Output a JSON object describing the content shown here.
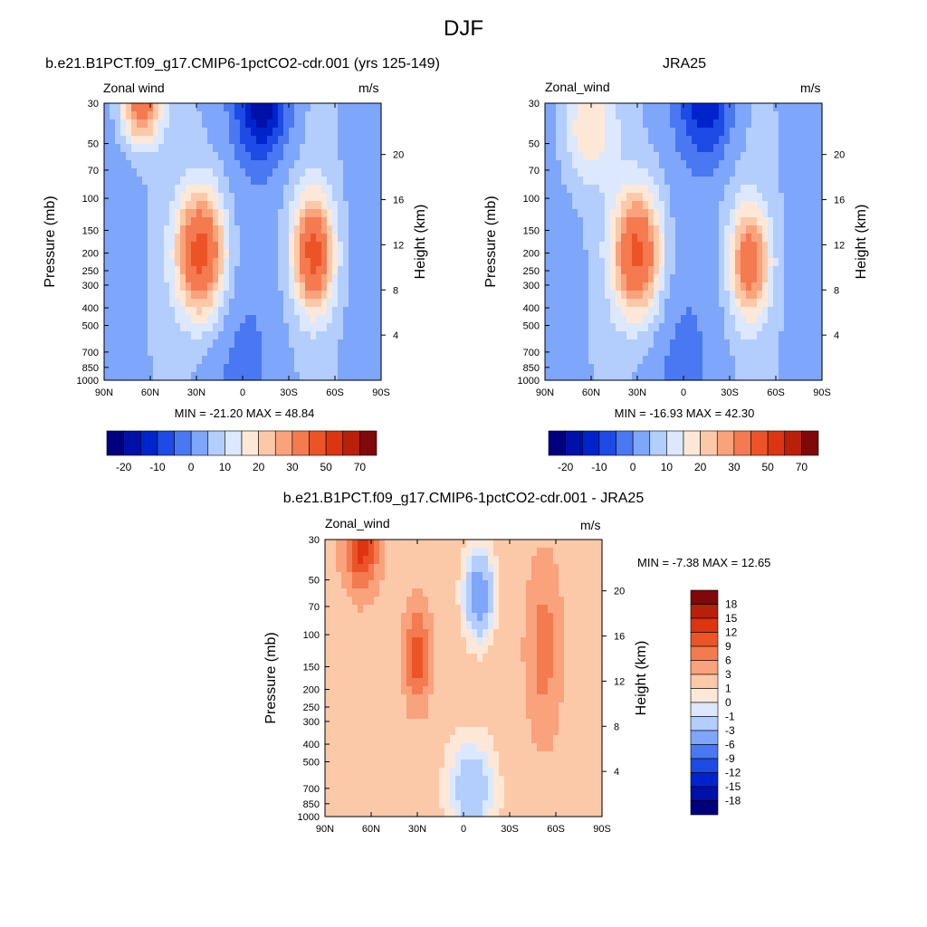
{
  "figure": {
    "title": "DJF"
  },
  "colors": {
    "ramp": [
      "#00007f",
      "#0010a8",
      "#0024cc",
      "#1e4ae6",
      "#4a78f2",
      "#7ea6fa",
      "#b3cdfc",
      "#dbe8fd",
      "#fde8d8",
      "#fcc9a8",
      "#f9a27c",
      "#f47a50",
      "#ec5428",
      "#dd3512",
      "#b8200a",
      "#7f0808"
    ]
  },
  "panels": [
    {
      "id": "model",
      "title": "b.e21.B1PCT.f09_g17.CMIP6-1pctCO2-cdr.001 (yrs 125-149)",
      "left_label": "Zonal wind",
      "right_label": "m/s",
      "ylabel": "Pressure (mb)",
      "y2label": "Height (km)",
      "stats": "MIN = -21.20  MAX =  48.84",
      "colorbar_ticks": [
        "-20",
        "-10",
        "0",
        "10",
        "20",
        "30",
        "50",
        "70"
      ]
    },
    {
      "id": "obs",
      "title": "JRA25",
      "left_label": "Zonal_wind",
      "right_label": "m/s",
      "ylabel": "Pressure (mb)",
      "y2label": "Height (km)",
      "stats": "MIN = -16.93  MAX =  42.30",
      "colorbar_ticks": [
        "-20",
        "-10",
        "0",
        "10",
        "20",
        "30",
        "50",
        "70"
      ]
    },
    {
      "id": "diff",
      "title": "b.e21.B1PCT.f09_g17.CMIP6-1pctCO2-cdr.001 - JRA25",
      "left_label": "Zonal_wind",
      "right_label": "m/s",
      "ylabel": "Pressure (mb)",
      "y2label": "Height (km)",
      "stats": "MIN =  -7.38  MAX =  12.65",
      "colorbar_ticks": [
        "18",
        "15",
        "12",
        "9",
        "6",
        "3",
        "1",
        "0",
        "-1",
        "-3",
        "-6",
        "-9",
        "-12",
        "-15",
        "-18"
      ]
    }
  ],
  "chart_data": [
    {
      "type": "heatmap",
      "title": "b.e21.B1PCT.f09_g17.CMIP6-1pctCO2-cdr.001 (yrs 125-149)",
      "ylabel": "Pressure (mb)",
      "y2label": "Height (km)",
      "x_ticks": [
        "90N",
        "60N",
        "30N",
        "0",
        "30S",
        "60S",
        "90S"
      ],
      "y_ticks": [
        "30",
        "50",
        "70",
        "100",
        "150",
        "200",
        "250",
        "300",
        "400",
        "500",
        "700",
        "850",
        "1000"
      ],
      "y2_ticks": [
        "20",
        "16",
        "12",
        "8",
        "4"
      ],
      "min": -21.2,
      "max": 48.84,
      "levels": [
        -20,
        -15,
        -10,
        -5,
        0,
        5,
        10,
        15,
        20,
        25,
        30,
        40,
        50,
        60,
        70
      ],
      "features": [
        {
          "kind": "jet",
          "lat": 27,
          "p": 200,
          "peak": 40,
          "wx": 11,
          "wp": 0.55
        },
        {
          "kind": "jet",
          "lat": -46,
          "p": 200,
          "peak": 38,
          "wx": 9,
          "wp": 0.5
        },
        {
          "kind": "jet",
          "lat": 66,
          "p": 30,
          "peak": 32,
          "wx": 9,
          "wp": 0.35
        },
        {
          "kind": "easterly",
          "lat": -13,
          "p": 30,
          "peak": -21,
          "wx": 12,
          "wp": 0.5
        }
      ]
    },
    {
      "type": "heatmap",
      "title": "JRA25",
      "ylabel": "Pressure (mb)",
      "y2label": "Height (km)",
      "x_ticks": [
        "90N",
        "60N",
        "30N",
        "0",
        "30S",
        "60S",
        "90S"
      ],
      "y_ticks": [
        "30",
        "50",
        "70",
        "100",
        "150",
        "200",
        "250",
        "300",
        "400",
        "500",
        "700",
        "850",
        "1000"
      ],
      "y2_ticks": [
        "20",
        "16",
        "12",
        "8",
        "4"
      ],
      "min": -16.93,
      "max": 42.3,
      "levels": [
        -20,
        -15,
        -10,
        -5,
        0,
        5,
        10,
        15,
        20,
        25,
        30,
        40,
        50,
        60,
        70
      ],
      "features": [
        {
          "kind": "jet",
          "lat": 30,
          "p": 200,
          "peak": 38,
          "wx": 11,
          "wp": 0.55
        },
        {
          "kind": "jet",
          "lat": -43,
          "p": 225,
          "peak": 30,
          "wx": 9,
          "wp": 0.5
        },
        {
          "kind": "jet",
          "lat": 62,
          "p": 40,
          "peak": 15,
          "wx": 12,
          "wp": 0.5
        },
        {
          "kind": "easterly",
          "lat": -15,
          "p": 30,
          "peak": -17,
          "wx": 12,
          "wp": 0.5
        }
      ]
    },
    {
      "type": "heatmap",
      "title": "b.e21.B1PCT.f09_g17.CMIP6-1pctCO2-cdr.001 - JRA25",
      "ylabel": "Pressure (mb)",
      "y2label": "Height (km)",
      "x_ticks": [
        "90N",
        "60N",
        "30N",
        "0",
        "30S",
        "60S",
        "90S"
      ],
      "y_ticks": [
        "30",
        "50",
        "70",
        "100",
        "150",
        "200",
        "250",
        "300",
        "400",
        "500",
        "700",
        "850",
        "1000"
      ],
      "y2_ticks": [
        "20",
        "16",
        "12",
        "8",
        "4"
      ],
      "min": -7.38,
      "max": 12.65,
      "levels": [
        -18,
        -15,
        -12,
        -9,
        -6,
        -3,
        -1,
        0,
        1,
        3,
        6,
        9,
        12,
        15,
        18
      ],
      "features": [
        {
          "kind": "jet",
          "lat": 66,
          "p": 32,
          "peak": 12,
          "wx": 8,
          "wp": 0.4
        },
        {
          "kind": "jet",
          "lat": 30,
          "p": 130,
          "peak": 9,
          "wx": 6,
          "wp": 0.45
        },
        {
          "kind": "jet",
          "lat": -52,
          "p": 120,
          "peak": 6,
          "wx": 8,
          "wp": 0.8
        },
        {
          "kind": "easterly",
          "lat": -10,
          "p": 60,
          "peak": -7,
          "wx": 6,
          "wp": 0.35
        },
        {
          "kind": "easterly",
          "lat": -5,
          "p": 700,
          "peak": -4,
          "wx": 10,
          "wp": 0.4
        }
      ]
    }
  ]
}
